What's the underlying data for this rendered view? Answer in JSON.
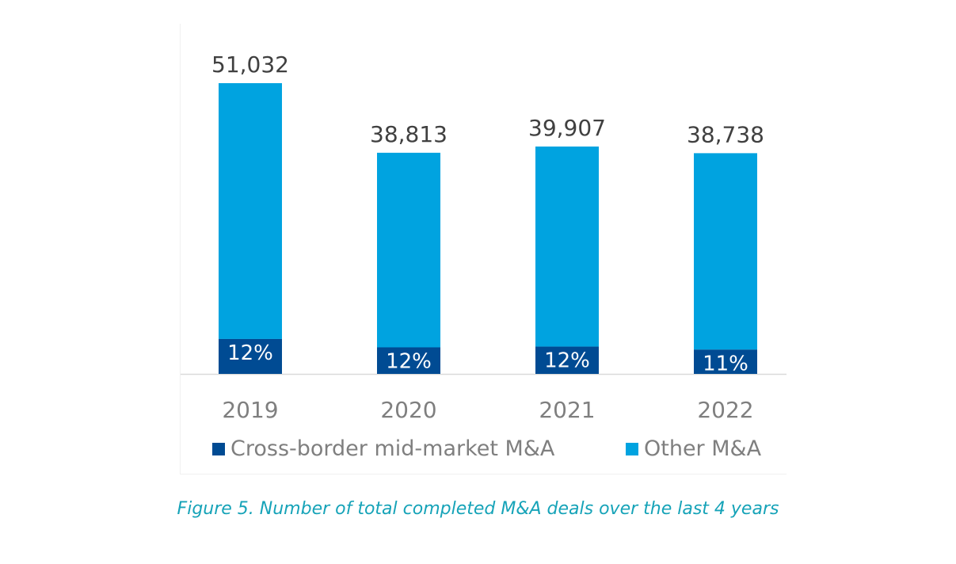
{
  "chart_data": {
    "type": "bar",
    "stacked": true,
    "categories": [
      "2019",
      "2020",
      "2021",
      "2022"
    ],
    "totals": [
      51032,
      38813,
      39907,
      38738
    ],
    "total_labels": [
      "51,032",
      "38,813",
      "39,907",
      "38,738"
    ],
    "series": [
      {
        "name": "Cross-border mid-market M&A",
        "values": [
          6124,
          4658,
          4789,
          4261
        ],
        "labels": [
          "12%",
          "12%",
          "12%",
          "11%"
        ],
        "color": "#004b93"
      },
      {
        "name": "Other M&A",
        "values": [
          44908,
          34155,
          35118,
          34477
        ],
        "color": "#00a3e0"
      }
    ],
    "ylim": [
      0,
      52000
    ],
    "legend_position": "bottom",
    "title": "",
    "xlabel": "",
    "ylabel": ""
  },
  "caption": "Figure 5. Number of total completed M&A deals over the last 4 years",
  "colors": {
    "axis": "#d9d9d9",
    "total_label": "#404040",
    "tick_label": "#7f7f7f",
    "legend_text": "#7f7f7f",
    "inner_label": "#ffffff",
    "caption": "#16a3b8"
  }
}
